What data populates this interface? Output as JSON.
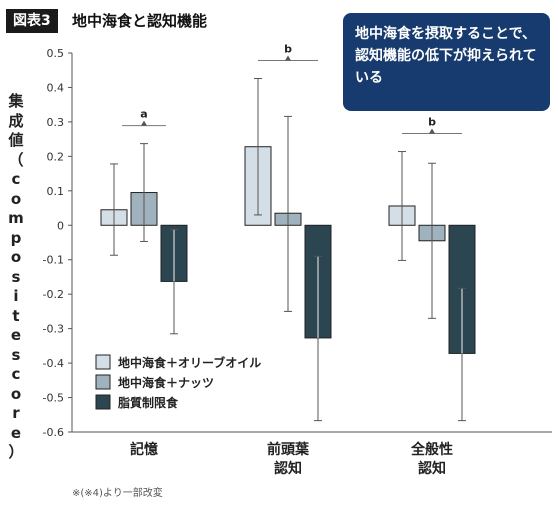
{
  "header": {
    "badge": "図表3",
    "title": "地中海食と認知機能"
  },
  "callout": {
    "text": "地中海食を摂取することで、認知機能の低下が抑えられている"
  },
  "source_note": "※(※4)より一部改変",
  "chart_data": {
    "type": "bar",
    "ylabel_main": "集成値",
    "ylabel_sub": "（composite score）",
    "ylim": [
      -0.6,
      0.5
    ],
    "yticks": [
      "0.5",
      "0.4",
      "0.3",
      "0.2",
      "0.1",
      "0",
      "-0.1",
      "-0.2",
      "-0.3",
      "-0.4",
      "-0.5",
      "-0.6"
    ],
    "categories": [
      {
        "line1": "記憶",
        "line2": ""
      },
      {
        "line1": "前頭葉",
        "line2": "認知"
      },
      {
        "line1": "全般性",
        "line2": "認知"
      }
    ],
    "series": [
      {
        "name": "地中海食＋オリーブオイル",
        "color": "#d3dee6",
        "values": [
          0.045,
          0.228,
          0.056
        ],
        "err_low": [
          -0.087,
          0.03,
          -0.102
        ],
        "err_high": [
          0.178,
          0.426,
          0.214
        ]
      },
      {
        "name": "地中海食＋ナッツ",
        "color": "#9fb2bd",
        "values": [
          0.095,
          0.035,
          -0.045
        ],
        "err_low": [
          -0.047,
          -0.25,
          -0.27
        ],
        "err_high": [
          0.237,
          0.316,
          0.18
        ]
      },
      {
        "name": "脂質制限食",
        "color": "#2b4651",
        "values": [
          -0.163,
          -0.327,
          -0.372
        ],
        "err_low": [
          -0.315,
          -0.567,
          -0.567
        ],
        "err_high": [
          -0.012,
          -0.09,
          -0.183
        ]
      }
    ],
    "significance": [
      {
        "category": 0,
        "label": "a"
      },
      {
        "category": 1,
        "label": "b"
      },
      {
        "category": 2,
        "label": "b"
      }
    ],
    "legend_position": "bottom-left",
    "grid": false
  }
}
